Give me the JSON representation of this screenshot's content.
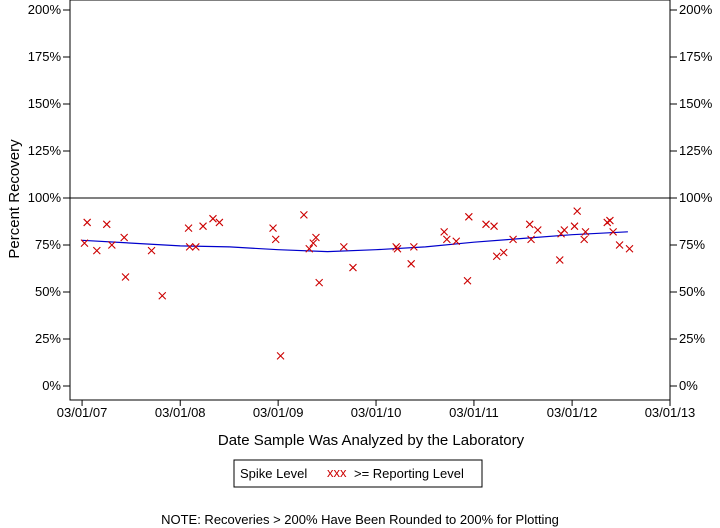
{
  "chart_data": {
    "type": "scatter",
    "xlabel": "Date Sample Was Analyzed by the Laboratory",
    "ylabel": "Percent Recovery",
    "ylim": [
      0,
      200
    ],
    "y_ticks": [
      "0%",
      "25%",
      "50%",
      "75%",
      "100%",
      "125%",
      "150%",
      "175%",
      "200%"
    ],
    "y_tick_values": [
      0,
      25,
      50,
      75,
      100,
      125,
      150,
      175,
      200
    ],
    "x_ticks": [
      "03/01/07",
      "03/01/08",
      "03/01/09",
      "03/01/10",
      "03/01/11",
      "03/01/12",
      "03/01/13"
    ],
    "xlim": [
      "2007-01-15",
      "2013-03-01"
    ],
    "reference_line": 100,
    "legend": {
      "title": "Spike Level",
      "symbol": "xxx",
      "label": ">= Reporting Level",
      "placement": "bottom-center"
    },
    "note": "NOTE: Recoveries > 200% Have Been Rounded to 200% for Plotting",
    "colors": {
      "points": "#cc0000",
      "trend": "#0000cc",
      "axis": "#000000"
    },
    "series": [
      {
        "name": ">= Reporting Level",
        "points": [
          {
            "x": "2007-03-10",
            "y": 76
          },
          {
            "x": "2007-03-20",
            "y": 87
          },
          {
            "x": "2007-04-25",
            "y": 72
          },
          {
            "x": "2007-06-01",
            "y": 86
          },
          {
            "x": "2007-06-20",
            "y": 75
          },
          {
            "x": "2007-08-05",
            "y": 79
          },
          {
            "x": "2007-08-10",
            "y": 58
          },
          {
            "x": "2007-11-15",
            "y": 72
          },
          {
            "x": "2007-12-25",
            "y": 48
          },
          {
            "x": "2008-04-01",
            "y": 84
          },
          {
            "x": "2008-04-05",
            "y": 74
          },
          {
            "x": "2008-04-28",
            "y": 74
          },
          {
            "x": "2008-05-25",
            "y": 85
          },
          {
            "x": "2008-07-01",
            "y": 89
          },
          {
            "x": "2008-07-25",
            "y": 87
          },
          {
            "x": "2009-02-10",
            "y": 84
          },
          {
            "x": "2009-02-20",
            "y": 78
          },
          {
            "x": "2009-03-10",
            "y": 16
          },
          {
            "x": "2009-06-05",
            "y": 91
          },
          {
            "x": "2009-06-25",
            "y": 73
          },
          {
            "x": "2009-07-10",
            "y": 76
          },
          {
            "x": "2009-07-20",
            "y": 79
          },
          {
            "x": "2009-08-01",
            "y": 55
          },
          {
            "x": "2009-11-01",
            "y": 74
          },
          {
            "x": "2009-12-05",
            "y": 63
          },
          {
            "x": "2010-05-15",
            "y": 74
          },
          {
            "x": "2010-05-20",
            "y": 73
          },
          {
            "x": "2010-07-10",
            "y": 65
          },
          {
            "x": "2010-07-20",
            "y": 74
          },
          {
            "x": "2010-11-10",
            "y": 82
          },
          {
            "x": "2010-11-20",
            "y": 78
          },
          {
            "x": "2010-12-25",
            "y": 77
          },
          {
            "x": "2011-02-05",
            "y": 56
          },
          {
            "x": "2011-02-10",
            "y": 90
          },
          {
            "x": "2011-04-15",
            "y": 86
          },
          {
            "x": "2011-05-15",
            "y": 85
          },
          {
            "x": "2011-05-25",
            "y": 69
          },
          {
            "x": "2011-06-20",
            "y": 71
          },
          {
            "x": "2011-07-25",
            "y": 78
          },
          {
            "x": "2011-09-25",
            "y": 86
          },
          {
            "x": "2011-09-30",
            "y": 78
          },
          {
            "x": "2011-10-25",
            "y": 83
          },
          {
            "x": "2012-01-15",
            "y": 67
          },
          {
            "x": "2012-01-20",
            "y": 81
          },
          {
            "x": "2012-02-01",
            "y": 83
          },
          {
            "x": "2012-03-10",
            "y": 85
          },
          {
            "x": "2012-03-20",
            "y": 93
          },
          {
            "x": "2012-04-15",
            "y": 78
          },
          {
            "x": "2012-04-20",
            "y": 82
          },
          {
            "x": "2012-07-10",
            "y": 87
          },
          {
            "x": "2012-07-20",
            "y": 88
          },
          {
            "x": "2012-08-01",
            "y": 82
          },
          {
            "x": "2012-08-25",
            "y": 75
          },
          {
            "x": "2012-10-01",
            "y": 73
          }
        ]
      }
    ],
    "trend_line": [
      {
        "x": "2007-03-01",
        "y": 77.5
      },
      {
        "x": "2007-09-01",
        "y": 76
      },
      {
        "x": "2008-03-01",
        "y": 74.5
      },
      {
        "x": "2008-09-01",
        "y": 74
      },
      {
        "x": "2009-03-01",
        "y": 72.5
      },
      {
        "x": "2009-09-01",
        "y": 71.5
      },
      {
        "x": "2010-03-01",
        "y": 72.5
      },
      {
        "x": "2010-09-01",
        "y": 74
      },
      {
        "x": "2011-03-01",
        "y": 76.5
      },
      {
        "x": "2011-09-01",
        "y": 78.5
      },
      {
        "x": "2012-03-01",
        "y": 80.5
      },
      {
        "x": "2012-09-25",
        "y": 82
      }
    ]
  }
}
